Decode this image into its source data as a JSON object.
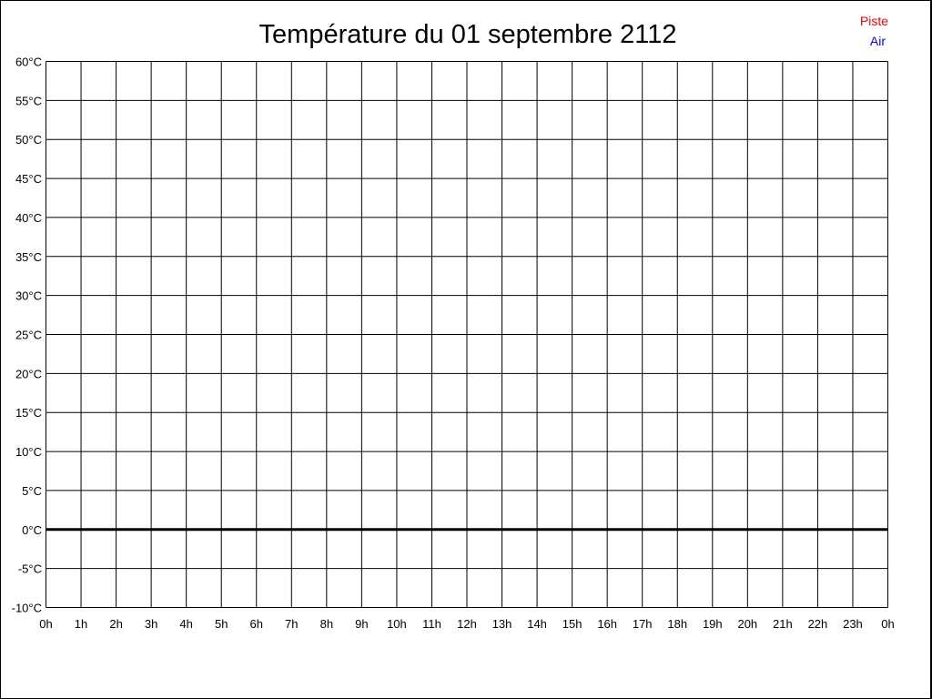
{
  "chart_data": {
    "type": "line",
    "title": "Température du 01 septembre 2112",
    "xlabel": "",
    "ylabel": "",
    "x_ticks": [
      "0h",
      "1h",
      "2h",
      "3h",
      "4h",
      "5h",
      "6h",
      "7h",
      "8h",
      "9h",
      "10h",
      "11h",
      "12h",
      "13h",
      "14h",
      "15h",
      "16h",
      "17h",
      "18h",
      "19h",
      "20h",
      "21h",
      "22h",
      "23h",
      "0h"
    ],
    "y_ticks": [
      "60°C",
      "55°C",
      "50°C",
      "45°C",
      "40°C",
      "35°C",
      "30°C",
      "25°C",
      "20°C",
      "15°C",
      "10°C",
      "5°C",
      "0°C",
      "-5°C",
      "-10°C"
    ],
    "ylim": [
      -10,
      60
    ],
    "xlim": [
      0,
      24
    ],
    "grid": true,
    "legend_position": "top-right",
    "series": [
      {
        "name": "Piste",
        "color": "#ff0000",
        "values": []
      },
      {
        "name": "Air",
        "color": "#0000ff",
        "values": []
      }
    ]
  }
}
